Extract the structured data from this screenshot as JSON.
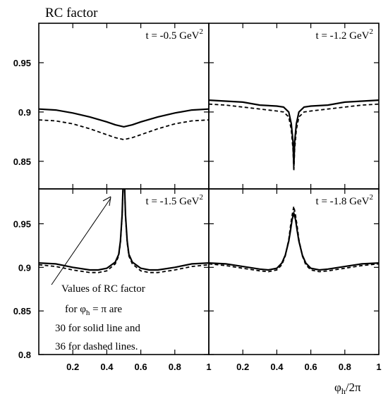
{
  "chart_data": {
    "type": "line",
    "title": "RC factor",
    "xlabel_main": "φ",
    "xlabel_sub": "h",
    "xlabel_rest": "/2π",
    "x_tick_labels": [
      "0.2",
      "0.4",
      "0.6",
      "0.8",
      "1"
    ],
    "x_ticks": [
      0.2,
      0.4,
      0.6,
      0.8,
      1.0
    ],
    "xlim": [
      0,
      1
    ],
    "top_row": {
      "ylim": [
        0.822,
        0.99
      ],
      "y_ticks": [
        0.85,
        0.9,
        0.95
      ],
      "y_tick_labels": [
        "0.85",
        "0.9",
        "0.95"
      ]
    },
    "bottom_row": {
      "ylim": [
        0.8,
        0.99
      ],
      "y_ticks": [
        0.8,
        0.85,
        0.9,
        0.95
      ],
      "y_tick_labels": [
        "0.8",
        "0.85",
        "0.9",
        "0.95"
      ]
    },
    "panels": [
      {
        "label": "t = -0.5 GeV",
        "superscript": "2",
        "series": [
          {
            "style": "solid",
            "x": [
              0,
              0.1,
              0.2,
              0.3,
              0.4,
              0.45,
              0.5,
              0.55,
              0.6,
              0.7,
              0.8,
              0.9,
              1.0
            ],
            "y": [
              0.903,
              0.902,
              0.899,
              0.895,
              0.89,
              0.887,
              0.885,
              0.887,
              0.89,
              0.895,
              0.899,
              0.902,
              0.903
            ]
          },
          {
            "style": "dashed",
            "x": [
              0,
              0.1,
              0.2,
              0.3,
              0.4,
              0.45,
              0.5,
              0.55,
              0.6,
              0.7,
              0.8,
              0.9,
              1.0
            ],
            "y": [
              0.892,
              0.891,
              0.888,
              0.883,
              0.877,
              0.874,
              0.872,
              0.874,
              0.877,
              0.883,
              0.888,
              0.891,
              0.892
            ]
          }
        ]
      },
      {
        "label": "t = -1.2 GeV",
        "superscript": "2",
        "series": [
          {
            "style": "solid",
            "x": [
              0,
              0.1,
              0.2,
              0.3,
              0.4,
              0.44,
              0.47,
              0.485,
              0.495,
              0.5,
              0.505,
              0.515,
              0.53,
              0.56,
              0.6,
              0.7,
              0.8,
              0.9,
              1.0
            ],
            "y": [
              0.912,
              0.911,
              0.91,
              0.907,
              0.906,
              0.905,
              0.9,
              0.888,
              0.87,
              0.845,
              0.87,
              0.888,
              0.9,
              0.905,
              0.906,
              0.907,
              0.91,
              0.911,
              0.912
            ]
          },
          {
            "style": "dashed",
            "x": [
              0,
              0.1,
              0.2,
              0.3,
              0.4,
              0.44,
              0.47,
              0.485,
              0.495,
              0.5,
              0.505,
              0.515,
              0.53,
              0.56,
              0.6,
              0.7,
              0.8,
              0.9,
              1.0
            ],
            "y": [
              0.908,
              0.907,
              0.905,
              0.903,
              0.901,
              0.9,
              0.895,
              0.882,
              0.862,
              0.84,
              0.862,
              0.882,
              0.895,
              0.9,
              0.901,
              0.903,
              0.905,
              0.907,
              0.908
            ]
          }
        ]
      },
      {
        "label": "t = -1.5 GeV",
        "superscript": "2",
        "series": [
          {
            "style": "solid",
            "x": [
              0,
              0.1,
              0.2,
              0.3,
              0.35,
              0.4,
              0.45,
              0.47,
              0.48,
              0.49,
              0.495,
              0.5,
              0.505,
              0.51,
              0.52,
              0.53,
              0.55,
              0.6,
              0.65,
              0.7,
              0.8,
              0.9,
              1.0
            ],
            "y": [
              0.905,
              0.904,
              0.9,
              0.897,
              0.897,
              0.899,
              0.906,
              0.915,
              0.93,
              0.96,
              0.99,
              1.0,
              0.99,
              0.96,
              0.93,
              0.915,
              0.906,
              0.899,
              0.897,
              0.897,
              0.9,
              0.904,
              0.905
            ]
          },
          {
            "style": "dashed",
            "x": [
              0,
              0.1,
              0.2,
              0.3,
              0.35,
              0.4,
              0.45,
              0.47,
              0.48,
              0.49,
              0.495,
              0.5,
              0.505,
              0.51,
              0.52,
              0.53,
              0.55,
              0.6,
              0.65,
              0.7,
              0.8,
              0.9,
              1.0
            ],
            "y": [
              0.903,
              0.901,
              0.897,
              0.894,
              0.894,
              0.896,
              0.904,
              0.913,
              0.928,
              0.958,
              0.99,
              1.0,
              0.99,
              0.958,
              0.928,
              0.913,
              0.904,
              0.896,
              0.894,
              0.894,
              0.897,
              0.901,
              0.903
            ]
          }
        ]
      },
      {
        "label": "t = -1.8 GeV",
        "superscript": "2",
        "series": [
          {
            "style": "solid",
            "x": [
              0,
              0.1,
              0.2,
              0.3,
              0.35,
              0.4,
              0.43,
              0.45,
              0.47,
              0.48,
              0.49,
              0.5,
              0.51,
              0.52,
              0.53,
              0.55,
              0.57,
              0.6,
              0.65,
              0.7,
              0.8,
              0.9,
              1.0
            ],
            "y": [
              0.905,
              0.904,
              0.901,
              0.898,
              0.897,
              0.899,
              0.905,
              0.914,
              0.93,
              0.942,
              0.955,
              0.962,
              0.955,
              0.942,
              0.93,
              0.914,
              0.905,
              0.899,
              0.897,
              0.898,
              0.901,
              0.904,
              0.905
            ]
          },
          {
            "style": "dashed",
            "x": [
              0,
              0.1,
              0.2,
              0.3,
              0.35,
              0.4,
              0.43,
              0.45,
              0.47,
              0.48,
              0.49,
              0.5,
              0.51,
              0.52,
              0.53,
              0.55,
              0.57,
              0.6,
              0.65,
              0.7,
              0.8,
              0.9,
              1.0
            ],
            "y": [
              0.904,
              0.902,
              0.899,
              0.896,
              0.895,
              0.897,
              0.903,
              0.913,
              0.932,
              0.947,
              0.96,
              0.97,
              0.96,
              0.947,
              0.932,
              0.913,
              0.903,
              0.897,
              0.895,
              0.896,
              0.899,
              0.902,
              0.904
            ]
          }
        ]
      }
    ],
    "annotation": {
      "lines": [
        "Values of RC factor",
        "for φ_h = π are",
        "30 for solid line and",
        "36 for dashed lines."
      ],
      "line2_prefix": "for φ",
      "line2_sub": "h",
      "line2_suffix": " = π are"
    }
  }
}
